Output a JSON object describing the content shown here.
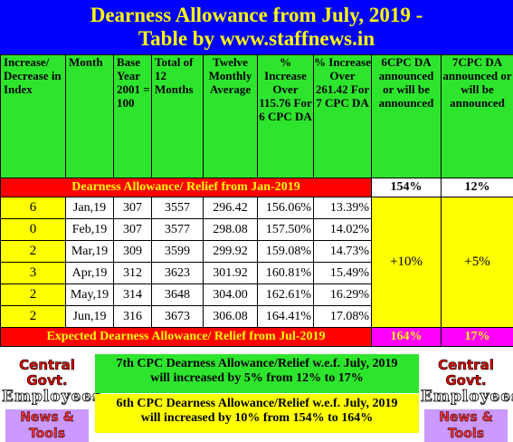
{
  "title": {
    "line1": "Dearness Allowance from July, 2019 -",
    "line2": "Table by www.staffnews.in"
  },
  "headers": {
    "increase": "Increase/ Decrease in Index",
    "month": "Month",
    "base": "Base Year 2001 = 100",
    "total": "Total of 12 Months",
    "avg": "Twelve Monthly Average",
    "pct6": "% Increase Over 115.76 For 6 CPC DA",
    "pct7": "% Increase Over 261.42 For 7 CPC DA",
    "da6": "6CPC DA announced or will be announced",
    "da7": "7CPC DA announced or will be announced"
  },
  "jan_band": {
    "label": "Dearness Allowance/ Relief from Jan-2019",
    "da6": "154%",
    "da7": "12%"
  },
  "rows": [
    {
      "inc": "6",
      "month": "Jan,19",
      "base": "307",
      "total": "3557",
      "avg": "296.42",
      "pct6": "156.06%",
      "pct7": "13.39%"
    },
    {
      "inc": "0",
      "month": "Feb,19",
      "base": "307",
      "total": "3577",
      "avg": "298.08",
      "pct6": "157.50%",
      "pct7": "14.02%"
    },
    {
      "inc": "2",
      "month": "Mar,19",
      "base": "309",
      "total": "3599",
      "avg": "299.92",
      "pct6": "159.08%",
      "pct7": "14.73%"
    },
    {
      "inc": "3",
      "month": "Apr,19",
      "base": "312",
      "total": "3623",
      "avg": "301.92",
      "pct6": "160.81%",
      "pct7": "15.49%"
    },
    {
      "inc": "2",
      "month": "May,19",
      "base": "314",
      "total": "3648",
      "avg": "304.00",
      "pct6": "162.61%",
      "pct7": "16.29%"
    },
    {
      "inc": "2",
      "month": "Jun,19",
      "base": "316",
      "total": "3673",
      "avg": "306.08",
      "pct6": "164.41%",
      "pct7": "17.08%"
    }
  ],
  "increase": {
    "da6": "+10%",
    "da7": "+5%"
  },
  "expected_band": {
    "label": "Expected Dearness Allowance/ Relief from Jul-2019",
    "da6": "164%",
    "da7": "17%"
  },
  "notes": {
    "cpc7_line1": "7th CPC Dearness Allowance/Relief w.e.f. July, 2019",
    "cpc7_line2": "will increased by 5% from 12% to 17%",
    "cpc6_line1": "6th CPC Dearness Allowance/Relief w.e.f. July, 2019",
    "cpc6_line2": "will increased by 10% from 154% to 164%"
  },
  "logo": {
    "line1": "Central Govt.",
    "line2": "Employees",
    "line3": "News & Tools"
  },
  "colors": {
    "title_bg": "#0000ff",
    "title_text": "#ffff00",
    "header_bg": "#2ee52e",
    "band_red": "#ff0000",
    "highlight_yellow": "#ffff00",
    "magenta": "#ff00ff"
  }
}
